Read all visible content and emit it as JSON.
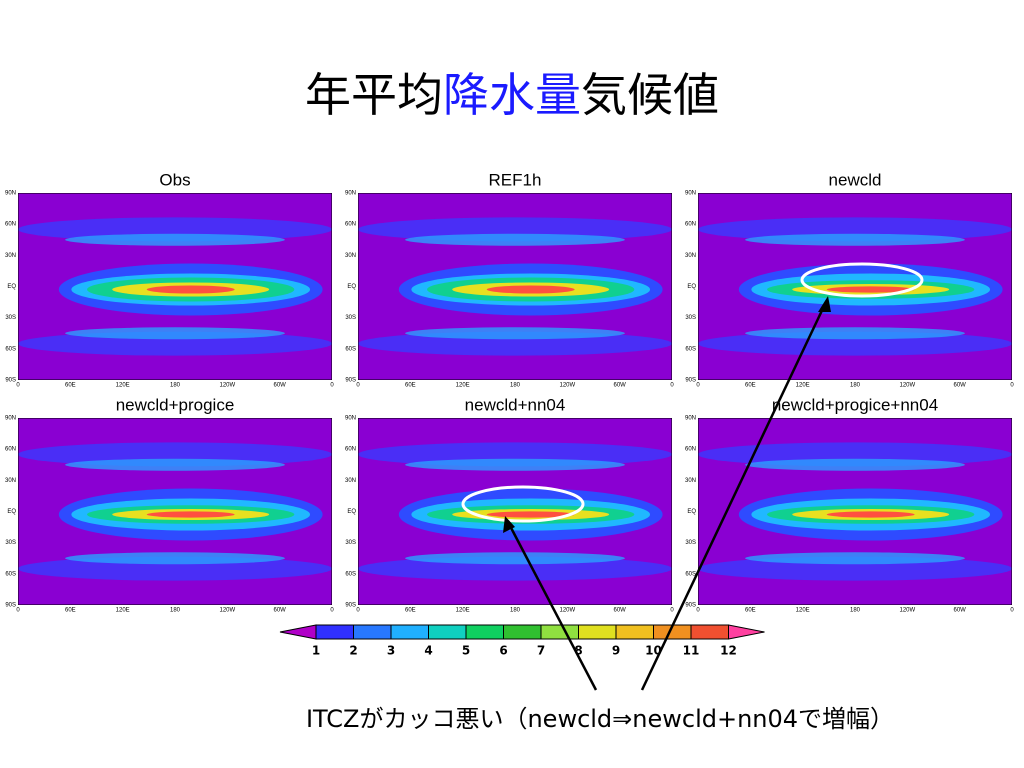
{
  "title": {
    "parts": [
      "年平均",
      "降水量",
      "気候値"
    ]
  },
  "panels": [
    {
      "title": "Obs"
    },
    {
      "title": "REF1h"
    },
    {
      "title": "newcld"
    },
    {
      "title": "newcld+progice"
    },
    {
      "title": "newcld+nn04"
    },
    {
      "title": "newcld+progice+nn04"
    }
  ],
  "map_axes": {
    "lat_labels": [
      "90N",
      "60N",
      "30N",
      "EQ",
      "30S",
      "60S",
      "90S"
    ],
    "lon_labels": [
      "0",
      "60E",
      "120E",
      "180",
      "120W",
      "60W",
      "0"
    ]
  },
  "colorbar": {
    "labels": [
      "1",
      "2",
      "3",
      "4",
      "5",
      "6",
      "7",
      "8",
      "9",
      "10",
      "11",
      "12"
    ]
  },
  "caption": "ITCZがカッコ悪い（newcld⇒newcld+nn04で増幅）"
}
